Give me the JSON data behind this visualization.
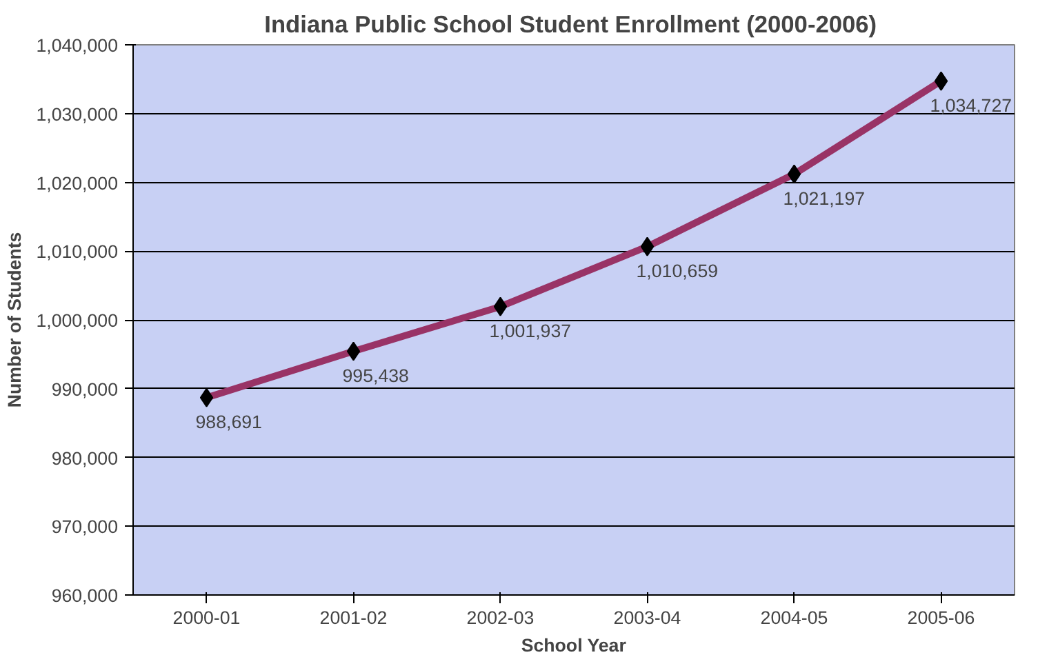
{
  "chart_data": {
    "type": "line",
    "title": "Indiana Public School Student  Enrollment (2000-2006)",
    "xlabel": "School Year",
    "ylabel": "Number of Students",
    "categories": [
      "2000-01",
      "2001-02",
      "2002-03",
      "2003-04",
      "2004-05",
      "2005-06"
    ],
    "series": [
      {
        "color": "#993366",
        "values": [
          988691,
          995438,
          1001937,
          1010659,
          1021197,
          1034727
        ]
      }
    ],
    "value_labels": [
      "988,691",
      "995,438",
      "1,001,937",
      "1,010,659",
      "1,021,197",
      "1,034,727"
    ],
    "ylim": [
      960000,
      1040000
    ],
    "yticks": [
      {
        "value": 960000,
        "label": "960,000"
      },
      {
        "value": 970000,
        "label": "970,000"
      },
      {
        "value": 980000,
        "label": "980,000"
      },
      {
        "value": 990000,
        "label": "990,000"
      },
      {
        "value": 1000000,
        "label": "1,000,000"
      },
      {
        "value": 1010000,
        "label": "1,010,000"
      },
      {
        "value": 1020000,
        "label": "1,020,000"
      },
      {
        "value": 1030000,
        "label": "1,030,000"
      },
      {
        "value": 1040000,
        "label": "1,040,000"
      }
    ],
    "grid": "y",
    "marker": "diamond",
    "line_style": "solid"
  }
}
